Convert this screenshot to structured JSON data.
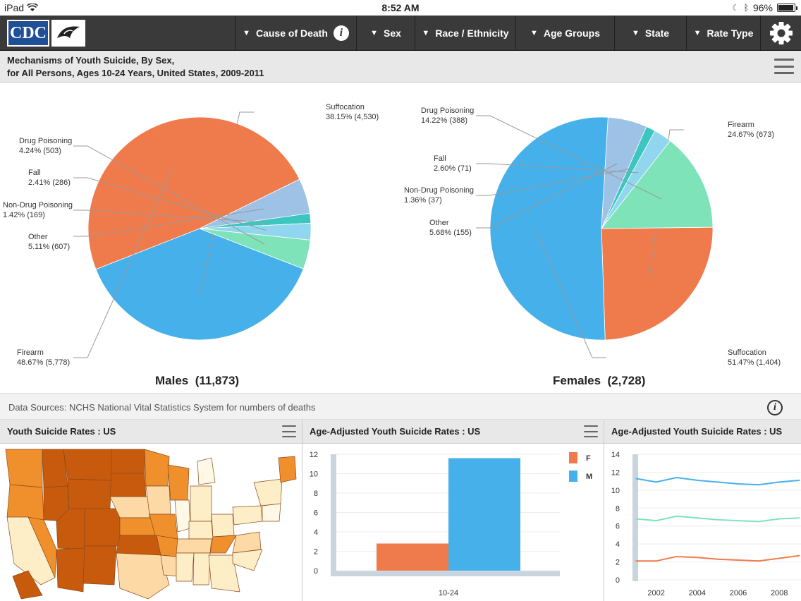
{
  "status_bar": {
    "device": "iPad",
    "time": "8:52 AM",
    "battery": "96%"
  },
  "nav": {
    "logo_text": "CDC",
    "items": [
      "Cause of Death",
      "Sex",
      "Race / Ethnicity",
      "Age Groups",
      "State",
      "Rate Type"
    ]
  },
  "main_chart": {
    "title_line1": "Mechanisms of Youth Suicide, By Sex,",
    "title_line2": "for All Persons, Ages 10-24 Years, United States, 2009-2011"
  },
  "chart_data": [
    {
      "type": "pie",
      "title": "Males  (11,873)",
      "slices": [
        {
          "name": "Suffocation",
          "pct": "38.15%",
          "count": "(4,530)",
          "value": 38.15,
          "color": "#45b0ea"
        },
        {
          "name": "Firearm",
          "pct": "48.67%",
          "count": "(5,778)",
          "value": 48.67,
          "color": "#ef7a4b"
        },
        {
          "name": "Other",
          "pct": "5.11%",
          "count": "(607)",
          "value": 5.11,
          "color": "#9ec1e6"
        },
        {
          "name": "Non-Drug Poisoning",
          "pct": "1.42%",
          "count": "(169)",
          "value": 1.42,
          "color": "#3dc6c0"
        },
        {
          "name": "Fall",
          "pct": "2.41%",
          "count": "(286)",
          "value": 2.41,
          "color": "#90d6ee"
        },
        {
          "name": "Drug Poisoning",
          "pct": "4.24%",
          "count": "(503)",
          "value": 4.24,
          "color": "#7ee3b8"
        }
      ]
    },
    {
      "type": "pie",
      "title": "Females  (2,728)",
      "slices": [
        {
          "name": "Firearm",
          "pct": "24.67%",
          "count": "(673)",
          "value": 24.67,
          "color": "#ef7a4b"
        },
        {
          "name": "Suffocation",
          "pct": "51.47%",
          "count": "(1,404)",
          "value": 51.47,
          "color": "#45b0ea"
        },
        {
          "name": "Other",
          "pct": "5.68%",
          "count": "(155)",
          "value": 5.68,
          "color": "#9ec1e6"
        },
        {
          "name": "Non-Drug Poisoning",
          "pct": "1.36%",
          "count": "(37)",
          "value": 1.36,
          "color": "#3dc6c0"
        },
        {
          "name": "Fall",
          "pct": "2.60%",
          "count": "(71)",
          "value": 2.6,
          "color": "#90d6ee"
        },
        {
          "name": "Drug Poisoning",
          "pct": "14.22%",
          "count": "(388)",
          "value": 14.22,
          "color": "#7ee3b8"
        }
      ]
    },
    {
      "type": "bar",
      "title": "Age-Adjusted Youth Suicide Rates : US",
      "categories": [
        "10-24"
      ],
      "ylim": [
        0,
        12
      ],
      "yticks": [
        0,
        2,
        4,
        6,
        8,
        10,
        12
      ],
      "series": [
        {
          "name": "F",
          "values": [
            2.8
          ],
          "color": "#ef7a4b"
        },
        {
          "name": "M",
          "values": [
            11.6
          ],
          "color": "#45b0ea"
        }
      ]
    },
    {
      "type": "line",
      "title": "Age-Adjusted Youth Suicide Rates : US",
      "x": [
        2001,
        2002,
        2003,
        2004,
        2005,
        2006,
        2007,
        2008,
        2009
      ],
      "xticks": [
        "2002",
        "2004",
        "2006",
        "2008"
      ],
      "ylim": [
        0,
        14
      ],
      "yticks": [
        0,
        2,
        4,
        6,
        8,
        10,
        12,
        14
      ],
      "series": [
        {
          "values": [
            11.3,
            10.9,
            11.4,
            11.1,
            10.9,
            10.7,
            10.6,
            10.9,
            11.1
          ],
          "color": "#45b0ea"
        },
        {
          "values": [
            6.8,
            6.6,
            7.1,
            6.9,
            6.7,
            6.6,
            6.5,
            6.8,
            6.9
          ],
          "color": "#7ee3b8"
        },
        {
          "values": [
            2.1,
            2.1,
            2.6,
            2.5,
            2.3,
            2.2,
            2.1,
            2.4,
            2.7
          ],
          "color": "#ef7a4b"
        }
      ]
    }
  ],
  "sources_text": "Data Sources: NCHS National Vital Statistics System for numbers of deaths",
  "panels": {
    "map_title": "Youth Suicide Rates : US",
    "bar_title": "Age-Adjusted Youth Suicide Rates : US",
    "line_title": "Age-Adjusted Youth Suicide Rates : US"
  }
}
